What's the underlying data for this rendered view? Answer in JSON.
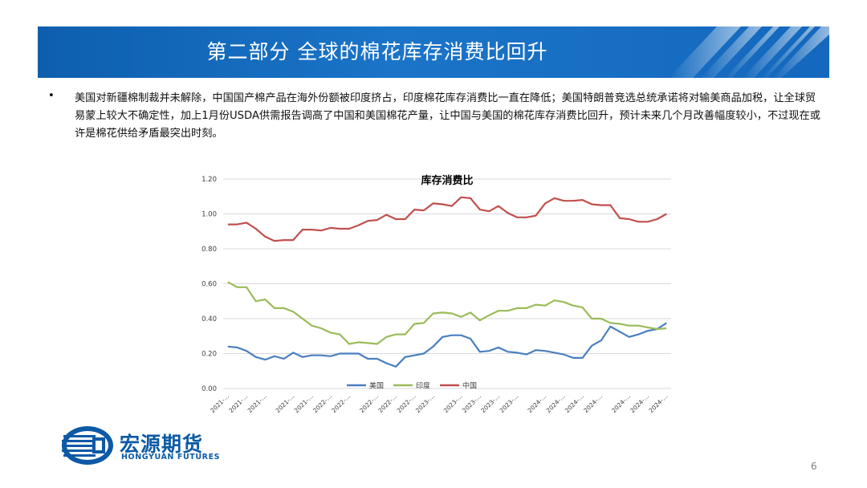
{
  "slide": {
    "title": "第二部分  全球的棉花库存消费比回升",
    "bullet": "美国对新疆棉制裁并未解除，中国国产棉产品在海外份额被印度挤占，印度棉花库存消费比一直在降低；美国特朗普竞选总统承诺将对输美商品加税，让全球贸易蒙上较大不确定性，加上1月份USDA供需报告调高了中国和美国棉花产量，让中国与美国的棉花库存消费比回升，预计未来几个月改善幅度较小，不过现在或许是棉花供给矛盾最突出时刻。",
    "bullet_marker": "•",
    "page_number": "6"
  },
  "logo": {
    "name_cn": "宏源期货",
    "name_en": "HONGYUAN FUTURES"
  },
  "colors": {
    "banner": "#1468bd",
    "us": "#4a7fc1",
    "india": "#9bbb59",
    "china": "#c0504d"
  },
  "chart_data": {
    "type": "line",
    "title": "库存消费比",
    "xlabel": "",
    "ylabel": "",
    "ylim": [
      0,
      1.2
    ],
    "yticks": [
      "0.00",
      "0.20",
      "0.40",
      "0.60",
      "0.80",
      "1.00",
      "1.20"
    ],
    "x_tick_labels": [
      "2021-…",
      "2021-…",
      "2021-…",
      "2021-…",
      "2021-…",
      "2022-…",
      "2022-…",
      "2022-…",
      "2022-…",
      "2022-…",
      "2023-…",
      "2023-…",
      "2023-…",
      "2023-…",
      "2023-…",
      "2024-…",
      "2024-…",
      "2024-…",
      "2024-…",
      "2024-…",
      "2024-…",
      "2024-…"
    ],
    "grid": true,
    "legend_position": "bottom",
    "series": [
      {
        "name": "美国",
        "color": "#4a7fc1",
        "values": [
          0.24,
          0.235,
          0.215,
          0.18,
          0.165,
          0.185,
          0.17,
          0.205,
          0.18,
          0.19,
          0.19,
          0.185,
          0.2,
          0.2,
          0.2,
          0.17,
          0.17,
          0.145,
          0.125,
          0.18,
          0.19,
          0.2,
          0.24,
          0.295,
          0.305,
          0.305,
          0.285,
          0.21,
          0.215,
          0.235,
          0.21,
          0.205,
          0.195,
          0.22,
          0.215,
          0.205,
          0.195,
          0.175,
          0.175,
          0.245,
          0.275,
          0.355,
          0.325,
          0.295,
          0.31,
          0.33,
          0.34,
          0.375
        ]
      },
      {
        "name": "印度",
        "color": "#9bbb59",
        "values": [
          0.61,
          0.58,
          0.58,
          0.5,
          0.51,
          0.46,
          0.46,
          0.44,
          0.4,
          0.36,
          0.345,
          0.32,
          0.31,
          0.255,
          0.265,
          0.26,
          0.255,
          0.295,
          0.31,
          0.31,
          0.37,
          0.375,
          0.43,
          0.435,
          0.43,
          0.41,
          0.435,
          0.39,
          0.42,
          0.445,
          0.445,
          0.46,
          0.46,
          0.48,
          0.475,
          0.505,
          0.495,
          0.475,
          0.465,
          0.4,
          0.4,
          0.375,
          0.37,
          0.36,
          0.36,
          0.35,
          0.34,
          0.345
        ]
      },
      {
        "name": "中国",
        "color": "#c0504d",
        "values": [
          0.94,
          0.94,
          0.95,
          0.915,
          0.87,
          0.845,
          0.85,
          0.85,
          0.91,
          0.91,
          0.905,
          0.92,
          0.915,
          0.915,
          0.935,
          0.96,
          0.965,
          0.995,
          0.97,
          0.97,
          1.025,
          1.02,
          1.06,
          1.055,
          1.045,
          1.095,
          1.09,
          1.025,
          1.015,
          1.045,
          1.005,
          0.98,
          0.98,
          0.99,
          1.06,
          1.09,
          1.075,
          1.075,
          1.08,
          1.055,
          1.05,
          1.05,
          0.975,
          0.97,
          0.955,
          0.955,
          0.97,
          1.0
        ]
      }
    ]
  }
}
